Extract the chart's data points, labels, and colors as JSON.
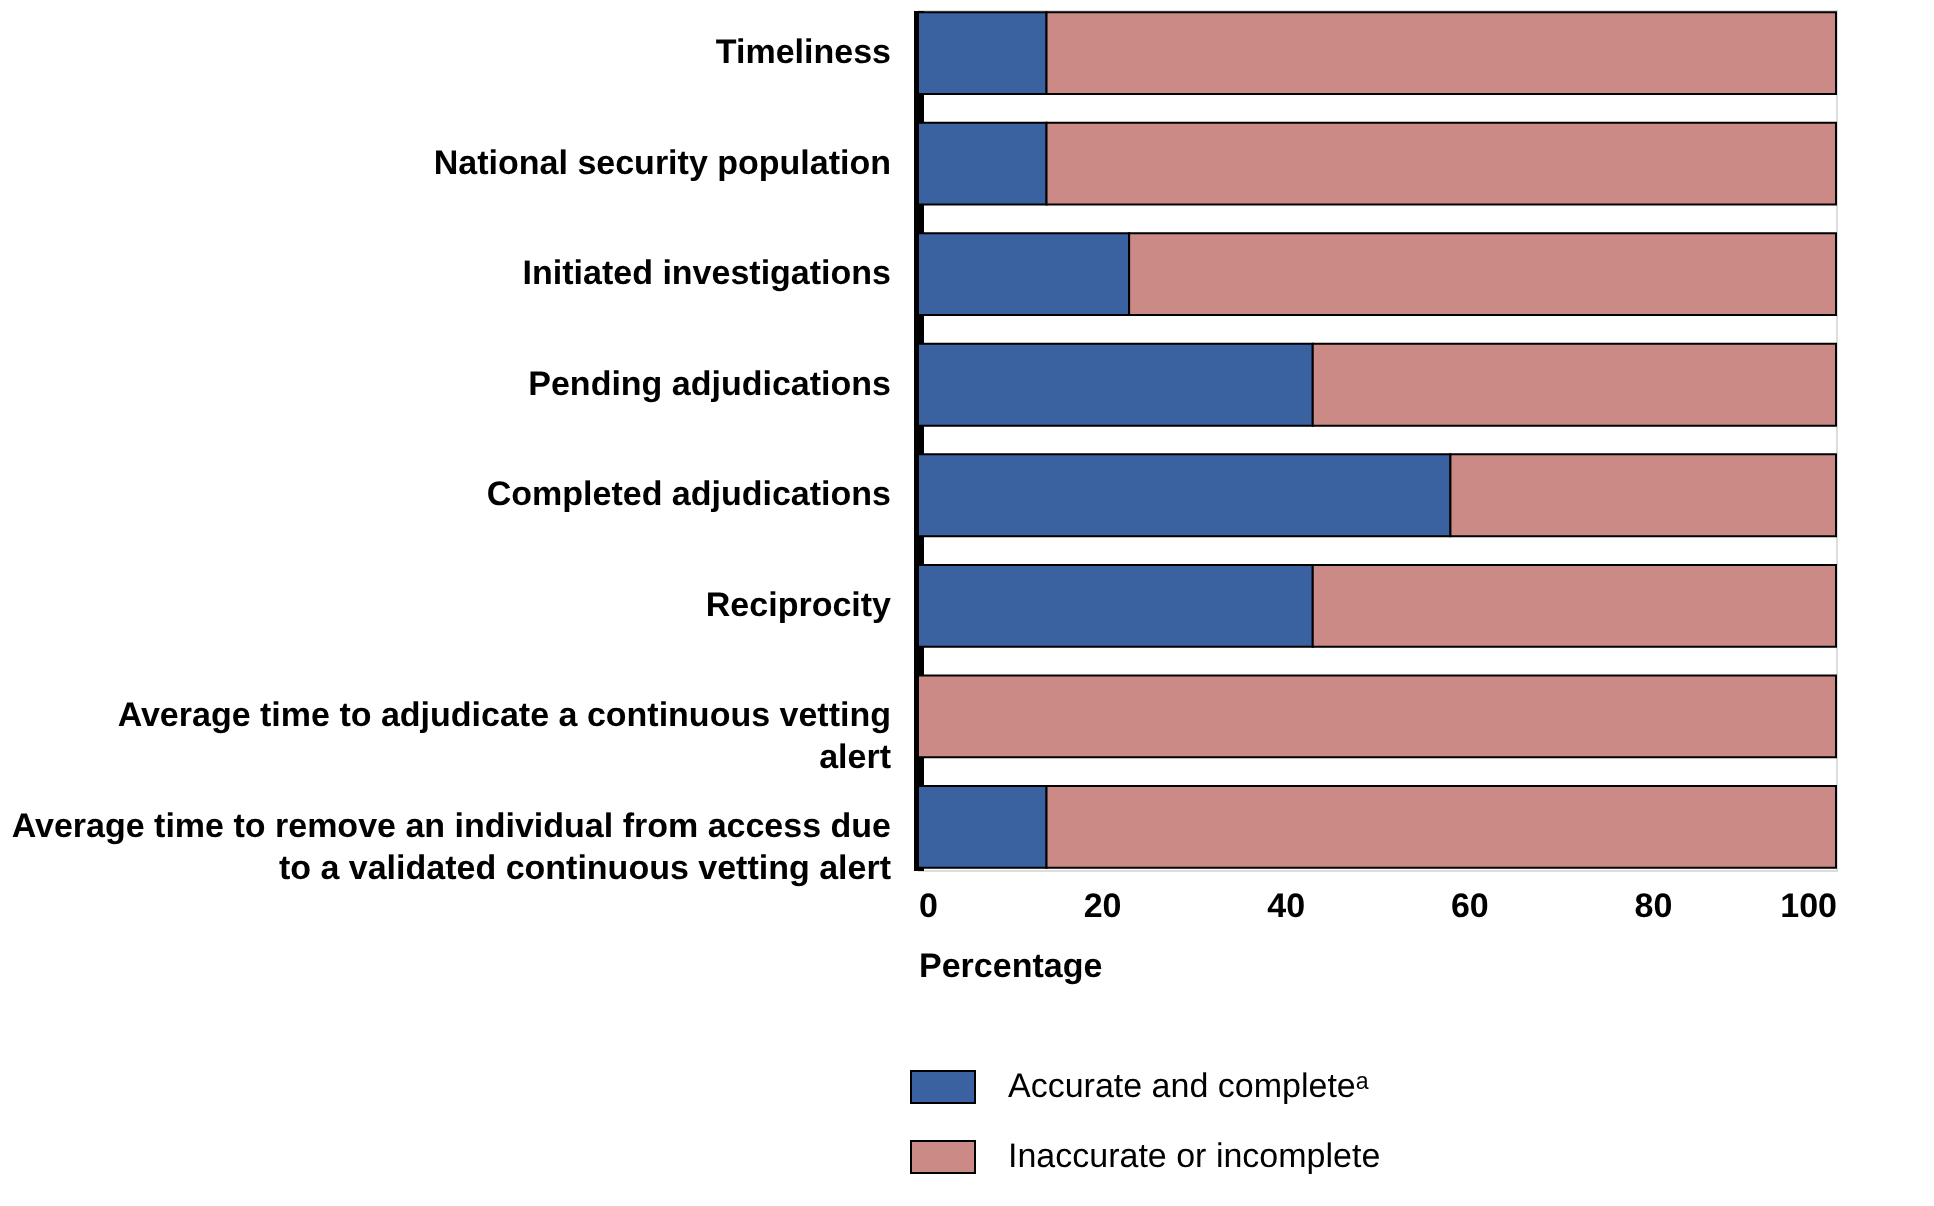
{
  "chart_data": {
    "type": "bar",
    "orientation": "horizontal",
    "stacked": true,
    "categories": [
      "Timeliness",
      "National security population",
      "Initiated investigations",
      "Pending adjudications",
      "Completed adjudications",
      "Reciprocity",
      "Average time to adjudicate a continuous vetting alert",
      "Average time to remove an individual from access due to a validated continuous vetting alert"
    ],
    "series": [
      {
        "name": "Accurate and completeᵃ",
        "color": "#3a62a0",
        "values": [
          14,
          14,
          23,
          43,
          58,
          43,
          0,
          14
        ]
      },
      {
        "name": "Inaccurate or incomplete",
        "color": "#cc8a86",
        "values": [
          86,
          86,
          77,
          57,
          42,
          57,
          100,
          86
        ]
      }
    ],
    "xlabel": "Percentage",
    "xlim": [
      0,
      100
    ],
    "xticks": [
      0,
      20,
      40,
      60,
      80,
      100
    ],
    "grid": false,
    "legend": "bottom left"
  }
}
